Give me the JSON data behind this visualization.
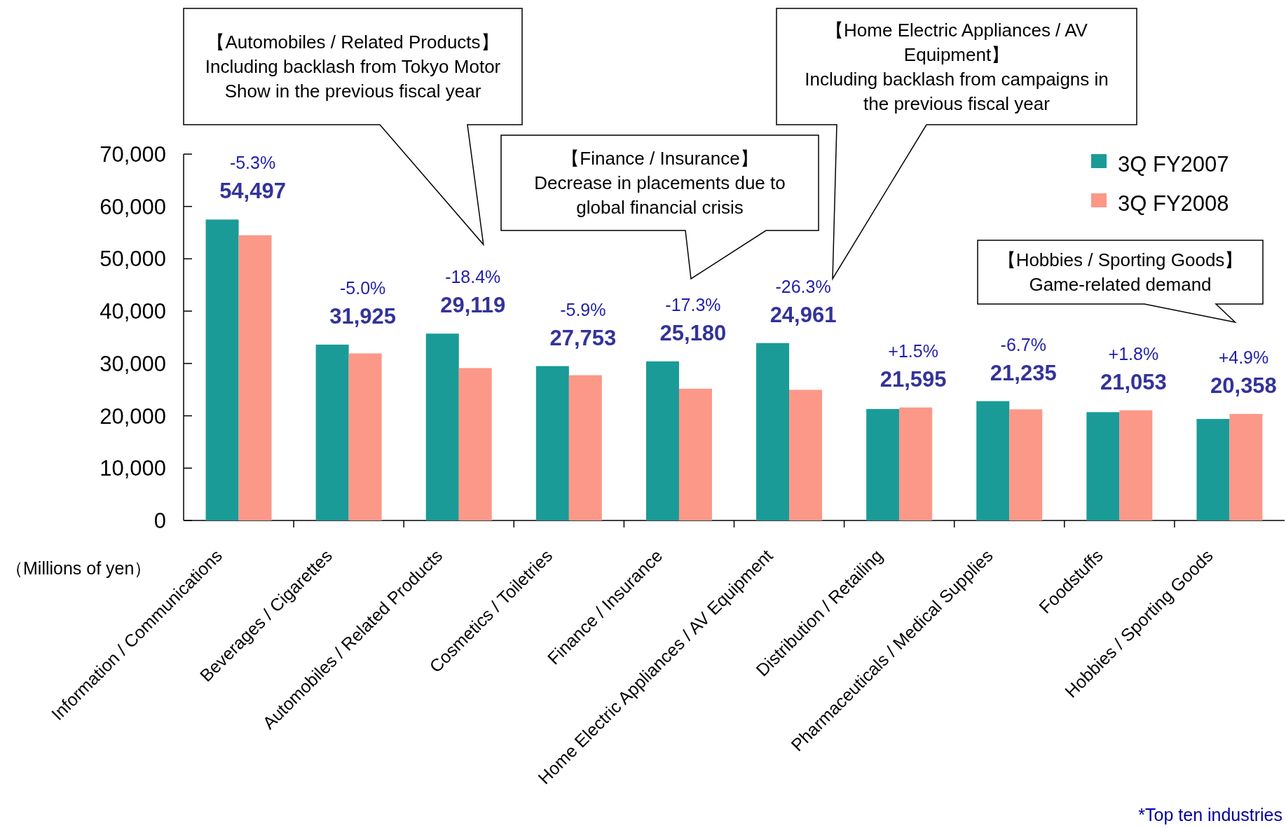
{
  "chart_data": {
    "type": "bar",
    "categories": [
      "Information / Communications",
      "Beverages / Cigarettes",
      "Automobiles / Related Products",
      "Cosmetics / Toiletries",
      "Finance / Insurance",
      "Home Electric Appliances / AV Equipment",
      "Distribution / Retailing",
      "Pharmaceuticals / Medical Supplies",
      "Foodstuffs",
      "Hobbies / Sporting Goods"
    ],
    "series": [
      {
        "name": "3Q FY2007",
        "color": "#1a9b98",
        "values": [
          57500,
          33600,
          35700,
          29500,
          30400,
          33900,
          21300,
          22800,
          20700,
          19400
        ]
      },
      {
        "name": "3Q FY2008",
        "color": "#fc9888",
        "values": [
          54497,
          31925,
          29119,
          27753,
          25180,
          24961,
          21595,
          21235,
          21053,
          20358
        ],
        "value_labels": [
          "54,497",
          "31,925",
          "29,119",
          "27,753",
          "25,180",
          "24,961",
          "21,595",
          "21,235",
          "21,053",
          "20,358"
        ]
      }
    ],
    "ylabel": "（Millions of yen）",
    "ylim": [
      0,
      70000
    ],
    "yticks": [
      0,
      {
        "value": 10000,
        "label": "10,000"
      },
      {
        "value": 20000,
        "label": "20,000"
      },
      {
        "value": 30000,
        "label": "30,000"
      },
      {
        "value": 40000,
        "label": "40,000"
      },
      {
        "value": 50000,
        "label": "50,000"
      },
      {
        "value": 60000,
        "label": "60,000"
      },
      {
        "value": 70000,
        "label": "70,000"
      }
    ],
    "legend": "top right",
    "annotations": [
      "-5.3%",
      "-5.0%",
      "-18.4%",
      "-5.9%",
      "-17.3%",
      "-26.3%",
      "+1.5%",
      "-6.7%",
      "+1.8%",
      "+4.9%",
      "【Automobiles / Related Products】 Including backlash from Tokyo Motor Show in the previous fiscal year",
      "【Finance / Insurance】 Decrease in placements due to global financial crisis",
      "【Home Electric Appliances / AV Equipment】 Including backlash from campaigns in the previous fiscal year",
      "【Hobbies / Sporting Goods】 Game-related demand",
      "*Top ten industries"
    ]
  }
}
